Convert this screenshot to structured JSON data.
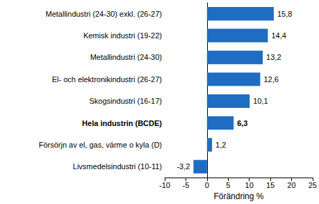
{
  "chart_data": {
    "type": "bar",
    "orientation": "horizontal",
    "x_label": "Förändring %",
    "categories": [
      "Metallindustri (24-30) exkl. (26-27)",
      "Kemisk industri (19-22)",
      "Metallindustri (24-30)",
      "El- och elektronikindustri (26-27)",
      "Skogsindustri (16-17)",
      "Hela industrin (BCDE)",
      "Försörjn av el, gas, värme o kyla (D)",
      "Livsmedelsindustri (10-11)"
    ],
    "values": [
      15.8,
      14.4,
      13.2,
      12.6,
      10.1,
      6.3,
      1.2,
      -3.2
    ],
    "value_labels": [
      "15,8",
      "14,4",
      "13,2",
      "12,6",
      "10,1",
      "6,3",
      "1,2",
      "-3,2"
    ],
    "color": "#1f6dc2",
    "xlim": [
      -10,
      25
    ],
    "xticks": [
      -10,
      -5,
      0,
      5,
      10,
      15,
      20,
      25
    ],
    "grid": false,
    "data_labels": true
  }
}
